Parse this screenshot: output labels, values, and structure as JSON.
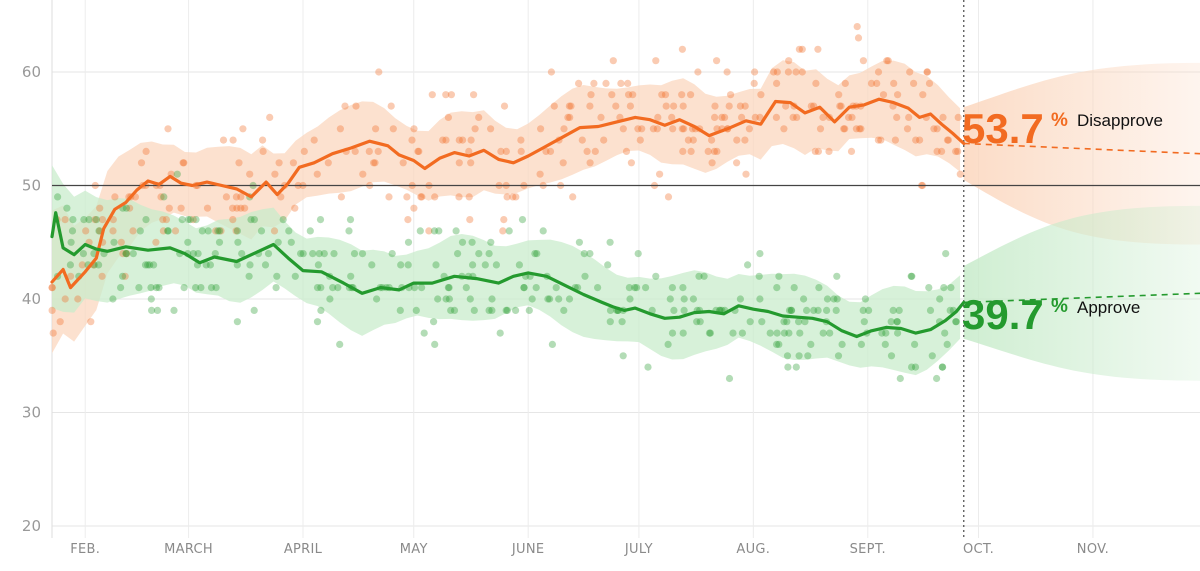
{
  "chart_data": {
    "type": "line",
    "title": "",
    "xlabel": "",
    "ylabel": "",
    "ylim": [
      20,
      66
    ],
    "y_ticks": [
      20,
      30,
      40,
      50,
      60
    ],
    "x_domain": [
      "2017-01-23",
      "2017-11-30"
    ],
    "month_ticks": [
      {
        "label": "FEB.",
        "date": "2017-02-01"
      },
      {
        "label": "MARCH",
        "date": "2017-03-01"
      },
      {
        "label": "APRIL",
        "date": "2017-04-01"
      },
      {
        "label": "MAY",
        "date": "2017-05-01"
      },
      {
        "label": "JUNE",
        "date": "2017-06-01"
      },
      {
        "label": "JULY",
        "date": "2017-07-01"
      },
      {
        "label": "AUG.",
        "date": "2017-08-01"
      },
      {
        "label": "SEPT.",
        "date": "2017-09-01"
      },
      {
        "label": "OCT.",
        "date": "2017-10-01"
      },
      {
        "label": "NOV.",
        "date": "2017-11-01"
      }
    ],
    "reference_line": 50,
    "today_marker": "2017-09-27",
    "series": [
      {
        "name": "Disapprove",
        "color": "#f26b21",
        "band_color": "#fbd6bd",
        "current_value": "53.7",
        "points": [
          [
            "2017-01-23",
            41.5
          ],
          [
            "2017-01-26",
            42.6
          ],
          [
            "2017-01-28",
            41.0
          ],
          [
            "2017-02-01",
            42.4
          ],
          [
            "2017-02-04",
            43.6
          ],
          [
            "2017-02-06",
            46.2
          ],
          [
            "2017-02-09",
            47.9
          ],
          [
            "2017-02-12",
            48.5
          ],
          [
            "2017-02-15",
            49.6
          ],
          [
            "2017-02-18",
            50.4
          ],
          [
            "2017-02-21",
            50.1
          ],
          [
            "2017-02-24",
            50.8
          ],
          [
            "2017-02-27",
            50.2
          ],
          [
            "2017-03-02",
            50.0
          ],
          [
            "2017-03-06",
            50.3
          ],
          [
            "2017-03-10",
            50.0
          ],
          [
            "2017-03-14",
            49.7
          ],
          [
            "2017-03-18",
            49.0
          ],
          [
            "2017-03-22",
            50.3
          ],
          [
            "2017-03-25",
            49.2
          ],
          [
            "2017-03-28",
            50.2
          ],
          [
            "2017-03-31",
            51.6
          ],
          [
            "2017-04-04",
            52.0
          ],
          [
            "2017-04-09",
            52.8
          ],
          [
            "2017-04-14",
            53.3
          ],
          [
            "2017-04-19",
            53.9
          ],
          [
            "2017-04-24",
            53.5
          ],
          [
            "2017-04-27",
            52.7
          ],
          [
            "2017-05-01",
            52.2
          ],
          [
            "2017-05-04",
            51.5
          ],
          [
            "2017-05-08",
            52.4
          ],
          [
            "2017-05-12",
            52.9
          ],
          [
            "2017-05-16",
            52.6
          ],
          [
            "2017-05-20",
            53.1
          ],
          [
            "2017-05-24",
            52.3
          ],
          [
            "2017-05-28",
            52.0
          ],
          [
            "2017-06-01",
            52.6
          ],
          [
            "2017-06-05",
            53.3
          ],
          [
            "2017-06-10",
            54.2
          ],
          [
            "2017-06-15",
            55.1
          ],
          [
            "2017-06-20",
            55.2
          ],
          [
            "2017-06-25",
            55.6
          ],
          [
            "2017-06-30",
            56.0
          ],
          [
            "2017-07-04",
            55.8
          ],
          [
            "2017-07-08",
            55.3
          ],
          [
            "2017-07-12",
            55.8
          ],
          [
            "2017-07-16",
            55.2
          ],
          [
            "2017-07-20",
            54.4
          ],
          [
            "2017-07-25",
            55.0
          ],
          [
            "2017-07-30",
            55.7
          ],
          [
            "2017-08-03",
            55.4
          ],
          [
            "2017-08-07",
            57.4
          ],
          [
            "2017-08-11",
            57.3
          ],
          [
            "2017-08-15",
            56.4
          ],
          [
            "2017-08-19",
            56.9
          ],
          [
            "2017-08-23",
            55.6
          ],
          [
            "2017-08-27",
            56.9
          ],
          [
            "2017-08-31",
            57.1
          ],
          [
            "2017-09-04",
            57.6
          ],
          [
            "2017-09-08",
            57.3
          ],
          [
            "2017-09-12",
            56.8
          ],
          [
            "2017-09-15",
            56.0
          ],
          [
            "2017-09-18",
            56.3
          ],
          [
            "2017-09-21",
            55.4
          ],
          [
            "2017-09-24",
            54.6
          ],
          [
            "2017-09-27",
            53.7
          ]
        ],
        "forecast_end": [
          "2017-11-30",
          52.8
        ]
      },
      {
        "name": "Approve",
        "color": "#249a2e",
        "band_color": "#c7ebca",
        "current_value": "39.7",
        "points": [
          [
            "2017-01-23",
            45.5
          ],
          [
            "2017-01-24",
            47.6
          ],
          [
            "2017-01-26",
            44.5
          ],
          [
            "2017-01-29",
            43.9
          ],
          [
            "2017-02-01",
            44.8
          ],
          [
            "2017-02-04",
            44.4
          ],
          [
            "2017-02-07",
            44.2
          ],
          [
            "2017-02-12",
            44.6
          ],
          [
            "2017-02-18",
            44.3
          ],
          [
            "2017-02-24",
            44.5
          ],
          [
            "2017-02-28",
            44.0
          ],
          [
            "2017-03-04",
            43.2
          ],
          [
            "2017-03-08",
            43.7
          ],
          [
            "2017-03-14",
            43.3
          ],
          [
            "2017-03-20",
            44.2
          ],
          [
            "2017-03-24",
            44.8
          ],
          [
            "2017-03-28",
            43.6
          ],
          [
            "2017-04-01",
            42.5
          ],
          [
            "2017-04-06",
            42.4
          ],
          [
            "2017-04-12",
            41.4
          ],
          [
            "2017-04-17",
            40.5
          ],
          [
            "2017-04-22",
            41.0
          ],
          [
            "2017-04-27",
            40.8
          ],
          [
            "2017-05-01",
            41.4
          ],
          [
            "2017-05-06",
            41.4
          ],
          [
            "2017-05-12",
            42.0
          ],
          [
            "2017-05-18",
            41.8
          ],
          [
            "2017-05-24",
            41.4
          ],
          [
            "2017-05-28",
            42.0
          ],
          [
            "2017-06-01",
            42.3
          ],
          [
            "2017-06-06",
            42.0
          ],
          [
            "2017-06-11",
            41.2
          ],
          [
            "2017-06-16",
            40.4
          ],
          [
            "2017-06-21",
            39.7
          ],
          [
            "2017-06-24",
            39.3
          ],
          [
            "2017-06-27",
            39.0
          ],
          [
            "2017-06-30",
            39.2
          ],
          [
            "2017-07-04",
            38.7
          ],
          [
            "2017-07-08",
            38.3
          ],
          [
            "2017-07-12",
            38.4
          ],
          [
            "2017-07-16",
            38.8
          ],
          [
            "2017-07-20",
            38.9
          ],
          [
            "2017-07-24",
            38.7
          ],
          [
            "2017-07-28",
            39.4
          ],
          [
            "2017-08-01",
            39.1
          ],
          [
            "2017-08-05",
            38.9
          ],
          [
            "2017-08-09",
            38.5
          ],
          [
            "2017-08-13",
            38.4
          ],
          [
            "2017-08-17",
            38.3
          ],
          [
            "2017-08-21",
            38.0
          ],
          [
            "2017-08-25",
            37.2
          ],
          [
            "2017-08-29",
            36.7
          ],
          [
            "2017-09-02",
            37.2
          ],
          [
            "2017-09-06",
            37.5
          ],
          [
            "2017-09-10",
            37.4
          ],
          [
            "2017-09-14",
            37.0
          ],
          [
            "2017-09-18",
            37.3
          ],
          [
            "2017-09-22",
            38.1
          ],
          [
            "2017-09-25",
            38.9
          ],
          [
            "2017-09-27",
            39.7
          ]
        ],
        "forecast_end": [
          "2017-11-30",
          40.5
        ]
      }
    ]
  },
  "labels": {
    "disapprove_value": "53.7",
    "disapprove_pct": "%",
    "disapprove_text": "Disapprove",
    "approve_value": "39.7",
    "approve_pct": "%",
    "approve_text": "Approve"
  },
  "colors": {
    "disapprove": "#f26b21",
    "approve": "#249a2e",
    "disapprove_band": "#fbd6bd",
    "approve_band": "#c7ebca",
    "grid": "#e6e6e6",
    "axis_text": "#999999"
  }
}
